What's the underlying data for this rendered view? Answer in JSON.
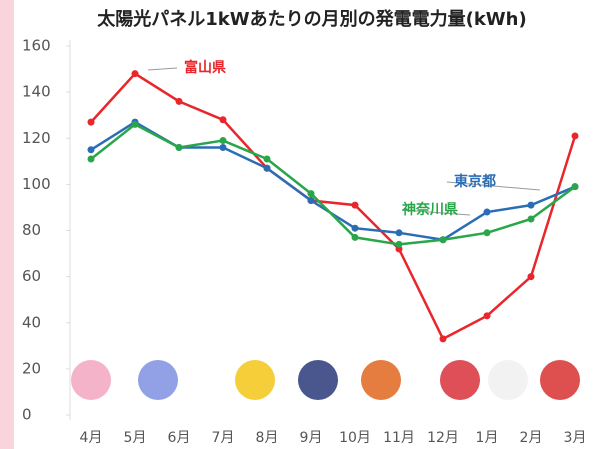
{
  "chart_data": {
    "type": "line",
    "title": "太陽光パネル1kWあたりの月別の発電電力量(kWh)",
    "categories": [
      "4月",
      "5月",
      "6月",
      "7月",
      "8月",
      "9月",
      "10月",
      "11月",
      "12月",
      "1月",
      "2月",
      "3月"
    ],
    "series": [
      {
        "name": "富山県",
        "color": "#e8262b",
        "values": [
          127,
          148,
          136,
          128,
          107,
          93,
          91,
          72,
          33,
          43,
          60,
          121
        ]
      },
      {
        "name": "東京都",
        "color": "#2b6db5",
        "values": [
          115,
          127,
          116,
          116,
          107,
          93,
          81,
          79,
          76,
          88,
          91,
          99
        ]
      },
      {
        "name": "神奈川県",
        "color": "#2aa64a",
        "values": [
          111,
          126,
          116,
          119,
          111,
          96,
          77,
          74,
          76,
          79,
          85,
          99
        ]
      }
    ],
    "ylim": [
      0,
      160
    ],
    "yticks": [
      0,
      20,
      40,
      60,
      80,
      100,
      120,
      140,
      160
    ],
    "grid": false
  }
}
